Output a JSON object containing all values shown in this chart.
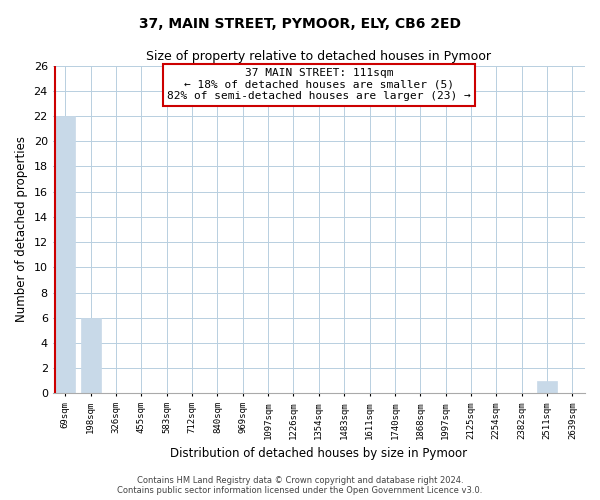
{
  "title": "37, MAIN STREET, PYMOOR, ELY, CB6 2ED",
  "subtitle": "Size of property relative to detached houses in Pymoor",
  "xlabel": "Distribution of detached houses by size in Pymoor",
  "ylabel": "Number of detached properties",
  "categories": [
    "69sqm",
    "198sqm",
    "326sqm",
    "455sqm",
    "583sqm",
    "712sqm",
    "840sqm",
    "969sqm",
    "1097sqm",
    "1226sqm",
    "1354sqm",
    "1483sqm",
    "1611sqm",
    "1740sqm",
    "1868sqm",
    "1997sqm",
    "2125sqm",
    "2254sqm",
    "2382sqm",
    "2511sqm",
    "2639sqm"
  ],
  "values": [
    22,
    6,
    0,
    0,
    0,
    0,
    0,
    0,
    0,
    0,
    0,
    0,
    0,
    0,
    0,
    0,
    0,
    0,
    0,
    1,
    0
  ],
  "bar_color": "#c8d9e8",
  "annotation_line1": "37 MAIN STREET: 111sqm",
  "annotation_line2": "← 18% of detached houses are smaller (5)",
  "annotation_line3": "82% of semi-detached houses are larger (23) →",
  "annotation_box_facecolor": "#ffffff",
  "annotation_box_edgecolor": "#cc0000",
  "ylim": [
    0,
    26
  ],
  "yticks": [
    0,
    2,
    4,
    6,
    8,
    10,
    12,
    14,
    16,
    18,
    20,
    22,
    24,
    26
  ],
  "footer_line1": "Contains HM Land Registry data © Crown copyright and database right 2024.",
  "footer_line2": "Contains public sector information licensed under the Open Government Licence v3.0.",
  "background_color": "#ffffff",
  "grid_color": "#b8cfe0",
  "subject_line_color": "#cc0000",
  "title_fontsize": 10,
  "subtitle_fontsize": 9
}
